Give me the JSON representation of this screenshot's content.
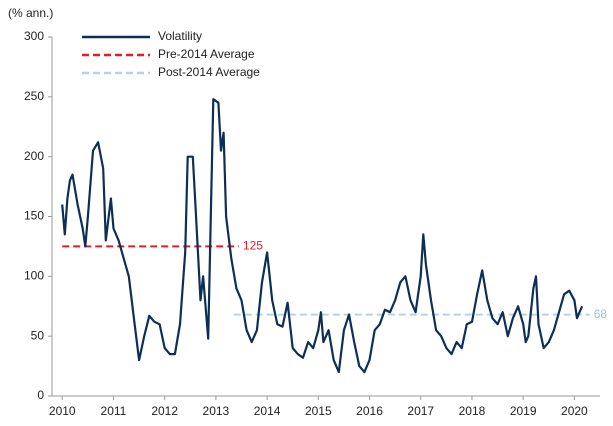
{
  "chart_data": {
    "type": "line",
    "ylabel": "(% ann.)",
    "xlim": [
      2009.8,
      2020.5
    ],
    "xticks": [
      2010,
      2011,
      2012,
      2013,
      2014,
      2015,
      2016,
      2017,
      2018,
      2019,
      2020
    ],
    "ylim": [
      0,
      300
    ],
    "yticks": [
      0,
      50,
      100,
      150,
      200,
      250,
      300
    ],
    "series": [
      {
        "name": "Volatility",
        "color": "#0d2e57",
        "dash": false,
        "x": [
          2010.0,
          2010.05,
          2010.1,
          2010.15,
          2010.2,
          2010.3,
          2010.4,
          2010.45,
          2010.5,
          2010.6,
          2010.7,
          2010.8,
          2010.85,
          2010.95,
          2011.0,
          2011.1,
          2011.2,
          2011.3,
          2011.4,
          2011.5,
          2011.6,
          2011.7,
          2011.8,
          2011.9,
          2012.0,
          2012.1,
          2012.2,
          2012.3,
          2012.4,
          2012.45,
          2012.55,
          2012.6,
          2012.7,
          2012.75,
          2012.85,
          2012.9,
          2012.95,
          2013.05,
          2013.1,
          2013.15,
          2013.2,
          2013.3,
          2013.4,
          2013.5,
          2013.6,
          2013.7,
          2013.8,
          2013.9,
          2014.0,
          2014.1,
          2014.2,
          2014.3,
          2014.4,
          2014.5,
          2014.6,
          2014.7,
          2014.8,
          2014.9,
          2015.0,
          2015.05,
          2015.1,
          2015.2,
          2015.3,
          2015.4,
          2015.5,
          2015.6,
          2015.7,
          2015.8,
          2015.9,
          2016.0,
          2016.1,
          2016.2,
          2016.3,
          2016.4,
          2016.5,
          2016.6,
          2016.7,
          2016.8,
          2016.9,
          2017.0,
          2017.05,
          2017.1,
          2017.2,
          2017.3,
          2017.4,
          2017.5,
          2017.6,
          2017.7,
          2017.8,
          2017.9,
          2018.0,
          2018.1,
          2018.2,
          2018.3,
          2018.4,
          2018.5,
          2018.6,
          2018.7,
          2018.8,
          2018.9,
          2019.0,
          2019.05,
          2019.1,
          2019.2,
          2019.25,
          2019.3,
          2019.4,
          2019.5,
          2019.6,
          2019.7,
          2019.8,
          2019.9,
          2020.0,
          2020.05,
          2020.1,
          2020.15
        ],
        "values": [
          160,
          135,
          165,
          180,
          185,
          160,
          140,
          125,
          150,
          205,
          212,
          190,
          130,
          165,
          140,
          130,
          115,
          100,
          65,
          30,
          50,
          67,
          62,
          60,
          40,
          35,
          35,
          60,
          120,
          200,
          200,
          160,
          80,
          100,
          48,
          150,
          248,
          245,
          205,
          220,
          150,
          115,
          90,
          80,
          55,
          45,
          55,
          95,
          120,
          80,
          60,
          58,
          78,
          40,
          35,
          32,
          45,
          40,
          55,
          70,
          45,
          55,
          30,
          20,
          55,
          68,
          45,
          25,
          20,
          30,
          55,
          60,
          72,
          70,
          80,
          95,
          100,
          80,
          70,
          100,
          135,
          110,
          80,
          55,
          50,
          40,
          35,
          45,
          40,
          60,
          62,
          85,
          105,
          80,
          65,
          60,
          70,
          50,
          65,
          75,
          60,
          45,
          50,
          90,
          100,
          60,
          40,
          45,
          55,
          70,
          85,
          88,
          80,
          65,
          70,
          75
        ]
      },
      {
        "name": "Pre-2014 Average",
        "color": "#e41e26",
        "dash": true,
        "x": [
          2010.0,
          2013.45
        ],
        "values": [
          125,
          125
        ]
      },
      {
        "name": "Post-2014 Average",
        "color": "#b4d4ec",
        "dash": true,
        "x": [
          2013.35,
          2020.3
        ],
        "values": [
          68,
          68
        ]
      }
    ]
  }
}
